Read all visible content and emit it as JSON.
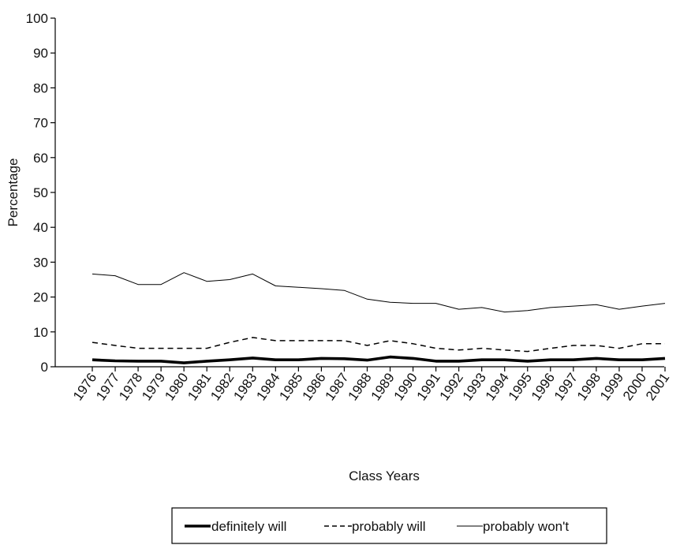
{
  "chart_data": {
    "type": "line",
    "title": "",
    "xlabel": "Class Years",
    "ylabel": "Percentage",
    "ylim": [
      0,
      100
    ],
    "yticks": [
      "0",
      "10",
      "20",
      "30",
      "40",
      "50",
      "60",
      "70",
      "80",
      "90",
      "100"
    ],
    "categories": [
      "1976",
      "1977",
      "1978",
      "1979",
      "1980",
      "1981",
      "1982",
      "1983",
      "1984",
      "1985",
      "1986",
      "1987",
      "1988",
      "1989",
      "1990",
      "1991",
      "1992",
      "1993",
      "1994",
      "1995",
      "1996",
      "1997",
      "1998",
      "1999",
      "2000",
      "2001"
    ],
    "grid": false,
    "legend_position": "bottom",
    "series": [
      {
        "name": "definitely will",
        "style": "solid-thick",
        "values": [
          2.0,
          1.7,
          1.6,
          1.6,
          1.1,
          1.6,
          2.0,
          2.5,
          2.0,
          2.0,
          2.4,
          2.3,
          1.9,
          2.8,
          2.4,
          1.6,
          1.6,
          2.0,
          2.0,
          1.6,
          2.0,
          2.0,
          2.4,
          2.0,
          2.0,
          2.4
        ]
      },
      {
        "name": "probably will",
        "style": "dashed",
        "values": [
          7.0,
          6.1,
          5.3,
          5.3,
          5.3,
          5.3,
          7.0,
          8.4,
          7.5,
          7.5,
          7.5,
          7.5,
          6.1,
          7.5,
          6.6,
          5.3,
          4.8,
          5.3,
          4.8,
          4.4,
          5.3,
          6.1,
          6.1,
          5.3,
          6.6,
          6.6
        ]
      },
      {
        "name": "probably won't",
        "style": "solid-thin",
        "values": [
          26.6,
          26.1,
          23.6,
          23.6,
          27.0,
          24.5,
          25.0,
          26.6,
          23.2,
          22.8,
          22.4,
          21.9,
          19.4,
          18.5,
          18.2,
          18.2,
          16.5,
          17.0,
          15.7,
          16.1,
          17.0,
          17.4,
          17.8,
          16.5,
          17.4,
          18.2
        ]
      }
    ]
  }
}
